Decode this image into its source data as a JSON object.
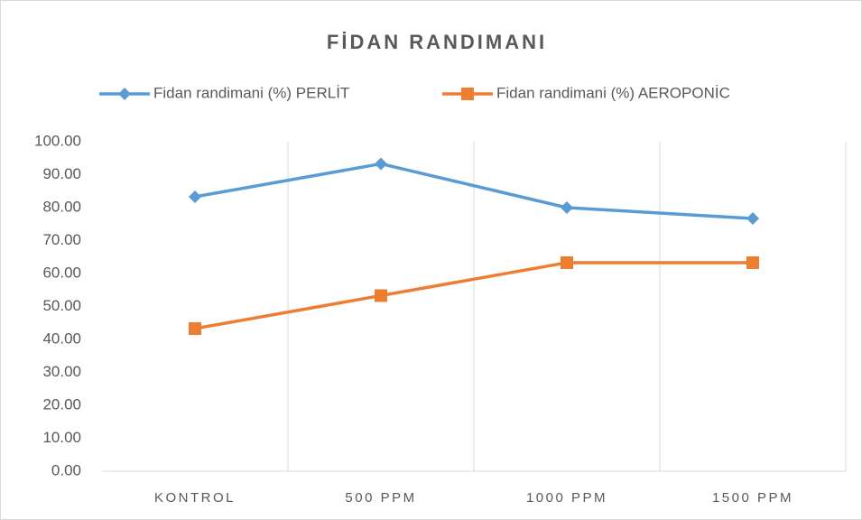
{
  "chart_data": {
    "type": "line",
    "title": "FİDAN RANDIMANI",
    "categories": [
      "KONTROL",
      "500 PPM",
      "1000 PPM",
      "1500 PPM"
    ],
    "series": [
      {
        "name": "Fidan randimani (%) PERLİT",
        "color": "#5b9bd5",
        "marker": "diamond",
        "values": [
          83.3,
          93.3,
          80.0,
          76.7
        ]
      },
      {
        "name": "Fidan randimani (%) AEROPONİC",
        "color": "#ed7d31",
        "marker": "square",
        "values": [
          43.3,
          53.3,
          63.3,
          63.3
        ]
      }
    ],
    "ylim": [
      0,
      100
    ],
    "yticks": [
      {
        "value": 0,
        "label": "0.00"
      },
      {
        "value": 10,
        "label": "10.00"
      },
      {
        "value": 20,
        "label": "20.00"
      },
      {
        "value": 30,
        "label": "30.00"
      },
      {
        "value": 40,
        "label": "40.00"
      },
      {
        "value": 50,
        "label": "50.00"
      },
      {
        "value": 60,
        "label": "60.00"
      },
      {
        "value": 70,
        "label": "70.00"
      },
      {
        "value": 80,
        "label": "80.00"
      },
      {
        "value": 90,
        "label": "90.00"
      },
      {
        "value": 100,
        "label": "100.00"
      }
    ],
    "legend": "top"
  }
}
